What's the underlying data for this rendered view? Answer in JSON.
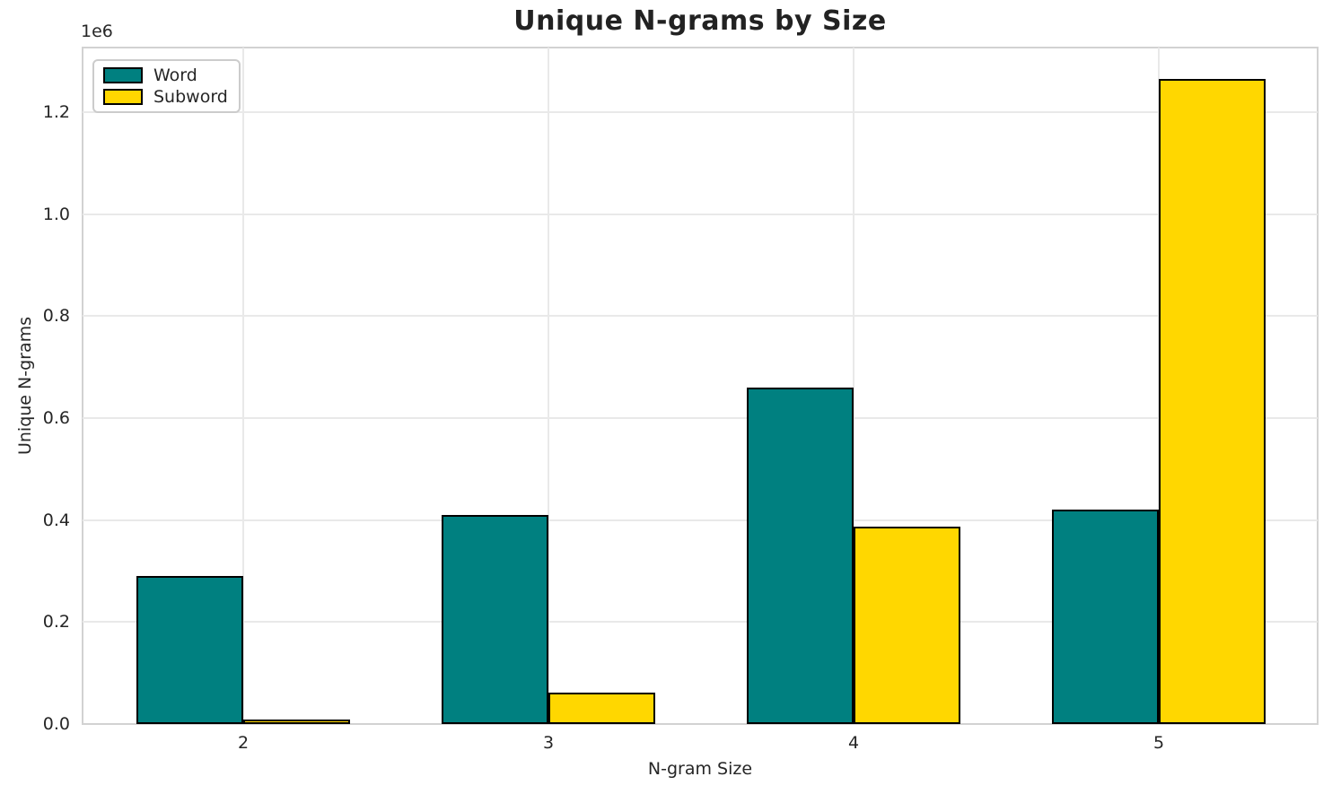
{
  "colors": {
    "grid": "#e9e9e9",
    "spine": "#d2d2d2",
    "text": "#262626",
    "background": "#ffffff",
    "legend_border": "#cccccc",
    "bar_edge": "#000000"
  },
  "chart_data": {
    "type": "bar",
    "title": "Unique N-grams by Size",
    "xlabel": "N-gram Size",
    "ylabel": "Unique N-grams",
    "y_offset_text": "1e6",
    "categories": [
      "2",
      "3",
      "4",
      "5"
    ],
    "series": [
      {
        "name": "Word",
        "color": "#008080",
        "values": [
          290000,
          410000,
          660000,
          420000
        ]
      },
      {
        "name": "Subword",
        "color": "#FFD700",
        "values": [
          9000,
          62000,
          388000,
          1265000
        ]
      }
    ],
    "ytick_labels": [
      "0.0",
      "0.2",
      "0.4",
      "0.6",
      "0.8",
      "1.0",
      "1.2"
    ],
    "ylim": [
      0,
      1327000
    ],
    "grid": true,
    "legend_position": "upper left",
    "bar_edge_color": "#000000"
  }
}
